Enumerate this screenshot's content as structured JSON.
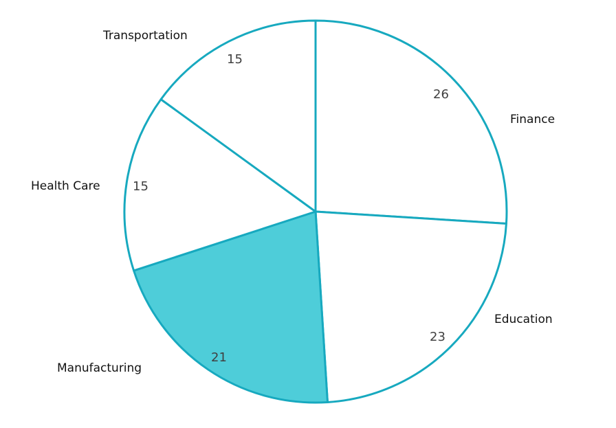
{
  "chart_data": {
    "type": "pie",
    "title": "",
    "categories": [
      "Finance",
      "Education",
      "Manufacturing",
      "Health Care",
      "Transportation"
    ],
    "values": [
      26,
      23,
      21,
      15,
      15
    ],
    "start_angle": "12 o'clock, clockwise",
    "highlighted": "Manufacturing",
    "colors": {
      "outline": "#17A9BF",
      "default_fill": "#FFFFFF",
      "highlight_fill": "#4ECDD9",
      "category_label": "#111111",
      "value_label": "#404040"
    },
    "legend": "none (labels outside slices)"
  },
  "labels": {
    "finance": "Finance",
    "education": "Education",
    "manufacturing": "Manufacturing",
    "health_care": "Health Care",
    "transportation": "Transportation"
  },
  "values": {
    "finance": "26",
    "education": "23",
    "manufacturing": "21",
    "health_care": "15",
    "transportation": "15"
  }
}
